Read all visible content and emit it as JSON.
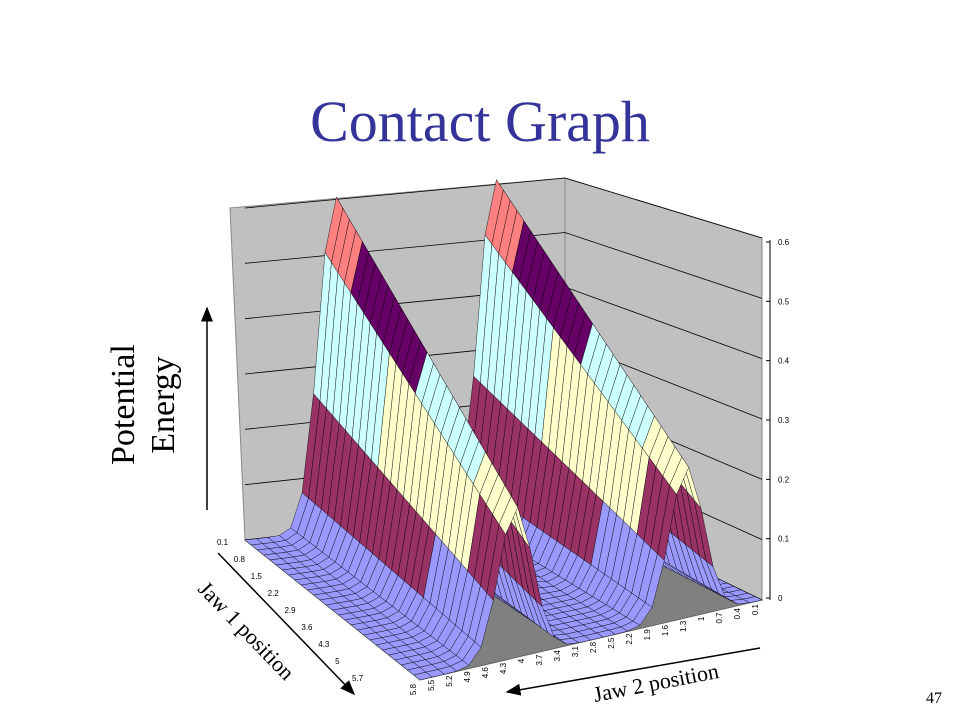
{
  "slide": {
    "title": "Contact Graph",
    "page_number": "47"
  },
  "chart_data": {
    "type": "surface",
    "title": "Contact Graph",
    "zlabel": "Potential Energy",
    "zlabel_lines": [
      "Potential",
      "Energy"
    ],
    "xlabel": "Jaw 1 position",
    "ylabel": "Jaw 2 position",
    "z_ticks": [
      "0",
      "0.1",
      "0.2",
      "0.3",
      "0.4",
      "0.5",
      "0.6"
    ],
    "zlim": [
      0,
      0.6
    ],
    "jaw1_ticks": [
      "0.1",
      "0.8",
      "1.5",
      "2.2",
      "2.9",
      "3.6",
      "4.3",
      "5",
      "5.7"
    ],
    "jaw2_ticks": [
      "5.8",
      "5.5",
      "5.2",
      "4.9",
      "4.6",
      "4.3",
      "4",
      "3.7",
      "3.4",
      "3.1",
      "2.8",
      "2.5",
      "2.2",
      "1.9",
      "1.6",
      "1.3",
      "1",
      "0.7",
      "0.4",
      "0.1"
    ],
    "color_bands": [
      {
        "range": [
          0,
          0.1
        ],
        "color": "#9999ff"
      },
      {
        "range": [
          0.1,
          0.2
        ],
        "color": "#993366"
      },
      {
        "range": [
          0.2,
          0.3
        ],
        "color": "#ffffcc"
      },
      {
        "range": [
          0.3,
          0.4
        ],
        "color": "#ccffff"
      },
      {
        "range": [
          0.4,
          0.5
        ],
        "color": "#660066"
      },
      {
        "range": [
          0.5,
          0.6
        ],
        "color": "#ff8080"
      }
    ],
    "peaks": [
      {
        "label": "left ridge",
        "z": 0.6
      },
      {
        "label": "right ridge",
        "z": 0.6
      }
    ],
    "grid": true
  },
  "colors": {
    "title": "#333399",
    "wall": "#c0c0c0",
    "floor": "#808080"
  }
}
